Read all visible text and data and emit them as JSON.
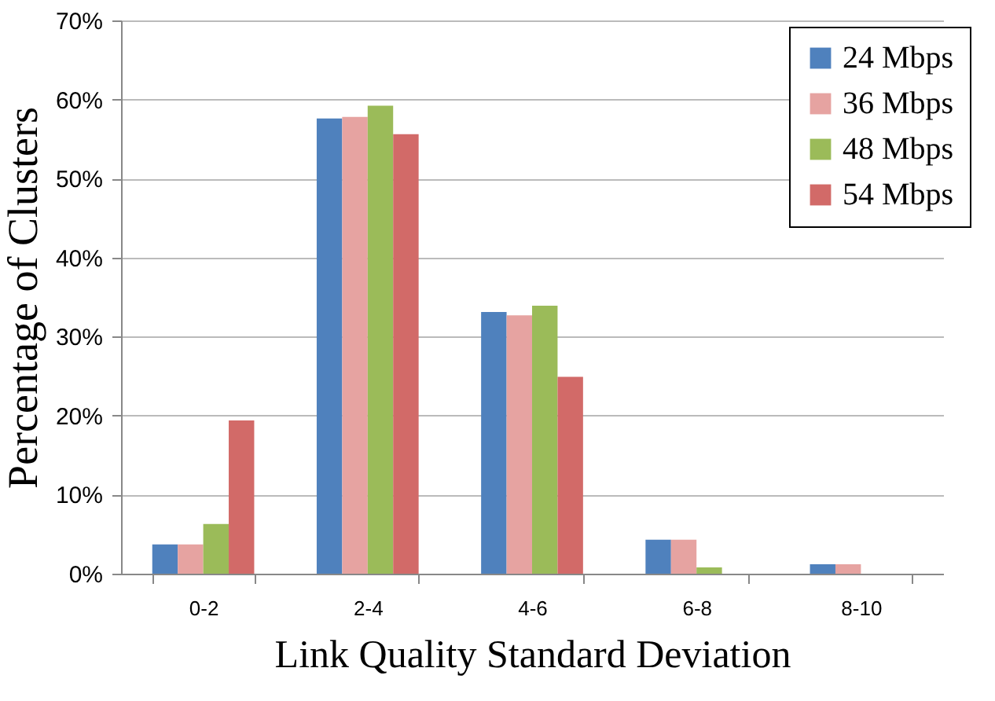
{
  "chart_data": {
    "type": "bar",
    "xlabel": "Link Quality Standard Deviation",
    "ylabel": "Percentage of Clusters",
    "categories": [
      "0-2",
      "2-4",
      "4-6",
      "6-8",
      "8-10"
    ],
    "series": [
      {
        "name": "24 Mbps",
        "color": "#4f81bd",
        "values": [
          3.7,
          57.6,
          33.1,
          4.3,
          1.2
        ]
      },
      {
        "name": "36 Mbps",
        "color": "#e6a3a1",
        "values": [
          3.7,
          57.8,
          32.7,
          4.3,
          1.2
        ]
      },
      {
        "name": "48 Mbps",
        "color": "#9bbb59",
        "values": [
          6.3,
          59.2,
          33.9,
          0.8,
          0
        ]
      },
      {
        "name": "54 Mbps",
        "color": "#d26a68",
        "values": [
          19.4,
          55.6,
          24.9,
          0,
          0
        ]
      }
    ],
    "ylim": [
      0,
      70
    ],
    "yticks": [
      {
        "value": 0,
        "label": "0%"
      },
      {
        "value": 10,
        "label": "10%"
      },
      {
        "value": 20,
        "label": "20%"
      },
      {
        "value": 30,
        "label": "30%"
      },
      {
        "value": 40,
        "label": "40%"
      },
      {
        "value": 50,
        "label": "50%"
      },
      {
        "value": 60,
        "label": "60%"
      },
      {
        "value": 70,
        "label": "70%"
      }
    ],
    "grid": "y",
    "legend": "top right"
  }
}
